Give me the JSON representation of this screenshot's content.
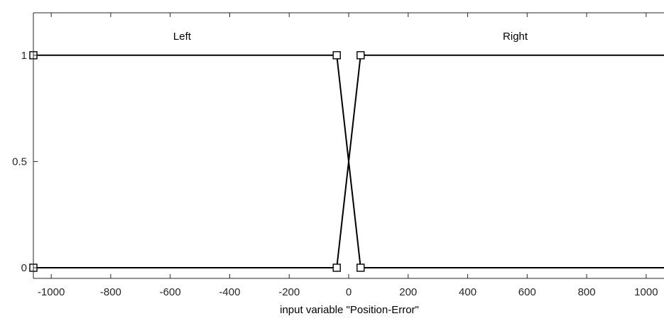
{
  "chart_data": {
    "type": "line",
    "xlabel": "input variable \"Position-Error\"",
    "ylabel": "",
    "xlim": [
      -1060,
      1060
    ],
    "ylim": [
      -0.05,
      1.2
    ],
    "x_ticks": [
      -1000,
      -800,
      -600,
      -400,
      -200,
      0,
      200,
      400,
      600,
      800,
      1000
    ],
    "y_ticks": [
      0,
      0.5,
      1
    ],
    "y_tick_labels": [
      "0",
      "0.5",
      "1"
    ],
    "grid": false,
    "series": [
      {
        "name": "Left",
        "x": [
          -1060,
          -40,
          40,
          1060
        ],
        "y": [
          1,
          1,
          0,
          0
        ]
      },
      {
        "name": "Right",
        "x": [
          -1060,
          -40,
          40,
          1060
        ],
        "y": [
          0,
          0,
          1,
          1
        ]
      }
    ],
    "label_positions": [
      {
        "text": "Left",
        "x": -560,
        "y": 1.09
      },
      {
        "text": "Right",
        "x": 560,
        "y": 1.09
      }
    ],
    "handles": [
      {
        "series": "Left",
        "x": -1060,
        "y": 1
      },
      {
        "series": "Left",
        "x": -40,
        "y": 1
      },
      {
        "series": "Left",
        "x": 40,
        "y": 0
      },
      {
        "series": "Right",
        "x": -1060,
        "y": 0
      },
      {
        "series": "Right",
        "x": -40,
        "y": 0
      },
      {
        "series": "Right",
        "x": 40,
        "y": 1
      }
    ],
    "colors": {
      "curve": "#000000",
      "axis": "#262626",
      "background": "#ffffff"
    }
  }
}
